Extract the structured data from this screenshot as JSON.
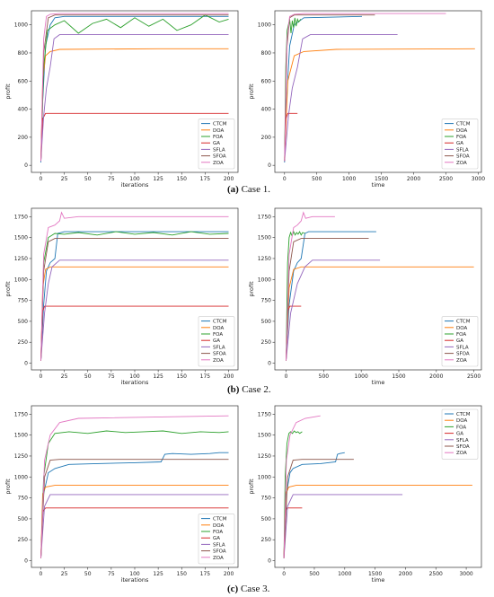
{
  "colors": {
    "CTCM": "#1f77b4",
    "DOA": "#ff7f0e",
    "FOA": "#2ca02c",
    "GA": "#d62728",
    "SFLA": "#9467bd",
    "SFOA": "#8c564b",
    "ZOA": "#e377c2"
  },
  "captions": [
    {
      "label": "(a)",
      "text": " Case 1."
    },
    {
      "label": "(b)",
      "text": " Case 2."
    },
    {
      "label": "(c)",
      "text": " Case 3."
    }
  ],
  "chart_data": [
    {
      "type": "line",
      "panel": "Case 1 (iterations)",
      "xlabel": "iterations",
      "ylabel": "profit",
      "xlim": [
        -10,
        210
      ],
      "ylim": [
        -50,
        1100
      ],
      "xticks": [
        0,
        25,
        50,
        75,
        100,
        125,
        150,
        175,
        200
      ],
      "yticks": [
        0,
        200,
        400,
        600,
        800,
        1000
      ],
      "legend": "bottom-right",
      "series": [
        {
          "name": "CTCM",
          "x": [
            0,
            2,
            5,
            10,
            15,
            25,
            200
          ],
          "y": [
            20,
            450,
            850,
            1000,
            1050,
            1060,
            1060
          ]
        },
        {
          "name": "DOA",
          "x": [
            0,
            2,
            5,
            10,
            20,
            125,
            200
          ],
          "y": [
            50,
            600,
            780,
            810,
            825,
            830,
            830
          ]
        },
        {
          "name": "FOA",
          "x": [
            0,
            3,
            7,
            15,
            25,
            40,
            55,
            70,
            85,
            100,
            115,
            130,
            145,
            160,
            175,
            190,
            200
          ],
          "y": [
            30,
            700,
            960,
            1000,
            1030,
            940,
            1010,
            1040,
            980,
            1050,
            990,
            1040,
            960,
            1000,
            1070,
            1020,
            1040
          ]
        },
        {
          "name": "GA",
          "x": [
            0,
            2,
            5,
            200
          ],
          "y": [
            30,
            330,
            370,
            370
          ]
        },
        {
          "name": "SFLA",
          "x": [
            0,
            3,
            6,
            10,
            14,
            20,
            200
          ],
          "y": [
            30,
            350,
            550,
            700,
            900,
            930,
            930
          ]
        },
        {
          "name": "SFOA",
          "x": [
            0,
            3,
            8,
            15,
            200
          ],
          "y": [
            30,
            800,
            1050,
            1070,
            1070
          ]
        },
        {
          "name": "ZOA",
          "x": [
            0,
            3,
            6,
            10,
            20,
            200
          ],
          "y": [
            30,
            900,
            1060,
            1075,
            1080,
            1080
          ]
        }
      ]
    },
    {
      "type": "line",
      "panel": "Case 1 (time)",
      "xlabel": "time",
      "ylabel": "profit",
      "xlim": [
        -150,
        3050
      ],
      "ylim": [
        -50,
        1100
      ],
      "xticks": [
        0,
        500,
        1000,
        1500,
        2000,
        2500,
        3000
      ],
      "yticks": [
        0,
        200,
        400,
        600,
        800,
        1000
      ],
      "legend": "bottom-right",
      "series": [
        {
          "name": "CTCM",
          "x": [
            0,
            30,
            80,
            150,
            300,
            1200
          ],
          "y": [
            20,
            450,
            850,
            1000,
            1050,
            1060
          ]
        },
        {
          "name": "DOA",
          "x": [
            0,
            50,
            150,
            300,
            800,
            2950
          ],
          "y": [
            50,
            600,
            780,
            810,
            825,
            830
          ]
        },
        {
          "name": "FOA",
          "x": [
            0,
            20,
            40,
            60,
            80,
            100,
            120,
            140,
            160,
            180,
            200,
            220,
            250
          ],
          "y": [
            30,
            700,
            960,
            1000,
            1040,
            940,
            1030,
            980,
            1050,
            990,
            1040,
            1020,
            1040
          ]
        },
        {
          "name": "GA",
          "x": [
            0,
            20,
            50,
            200
          ],
          "y": [
            30,
            330,
            370,
            370
          ]
        },
        {
          "name": "SFLA",
          "x": [
            0,
            60,
            120,
            200,
            280,
            400,
            1750
          ],
          "y": [
            30,
            350,
            550,
            700,
            900,
            930,
            930
          ]
        },
        {
          "name": "SFOA",
          "x": [
            0,
            30,
            80,
            150,
            1400
          ],
          "y": [
            30,
            800,
            1050,
            1070,
            1070
          ]
        },
        {
          "name": "ZOA",
          "x": [
            0,
            40,
            80,
            150,
            300,
            2500
          ],
          "y": [
            30,
            900,
            1060,
            1075,
            1080,
            1080
          ]
        }
      ]
    },
    {
      "type": "line",
      "panel": "Case 2 (iterations)",
      "xlabel": "iterations",
      "ylabel": "profit",
      "xlim": [
        -10,
        210
      ],
      "ylim": [
        -80,
        1850
      ],
      "xticks": [
        0,
        25,
        50,
        75,
        100,
        125,
        150,
        175,
        200
      ],
      "yticks": [
        0,
        250,
        500,
        750,
        1000,
        1250,
        1500,
        1750
      ],
      "legend": "bottom-right",
      "series": [
        {
          "name": "CTCM",
          "x": [
            0,
            3,
            6,
            10,
            15,
            18,
            25,
            200
          ],
          "y": [
            30,
            700,
            1100,
            1200,
            1250,
            1550,
            1570,
            1570
          ]
        },
        {
          "name": "DOA",
          "x": [
            0,
            2,
            5,
            10,
            200
          ],
          "y": [
            30,
            900,
            1120,
            1150,
            1150
          ]
        },
        {
          "name": "FOA",
          "x": [
            0,
            3,
            8,
            15,
            25,
            40,
            60,
            80,
            100,
            120,
            140,
            160,
            180,
            200
          ],
          "y": [
            30,
            1200,
            1500,
            1550,
            1540,
            1560,
            1530,
            1570,
            1540,
            1560,
            1530,
            1570,
            1540,
            1550
          ]
        },
        {
          "name": "GA",
          "x": [
            0,
            2,
            4,
            200
          ],
          "y": [
            30,
            620,
            680,
            680
          ]
        },
        {
          "name": "SFLA",
          "x": [
            0,
            4,
            8,
            12,
            20,
            200
          ],
          "y": [
            30,
            600,
            950,
            1150,
            1230,
            1230
          ]
        },
        {
          "name": "SFOA",
          "x": [
            0,
            3,
            8,
            15,
            200
          ],
          "y": [
            30,
            1100,
            1450,
            1490,
            1490
          ]
        },
        {
          "name": "ZOA",
          "x": [
            0,
            3,
            8,
            15,
            20,
            22,
            25,
            40,
            200
          ],
          "y": [
            30,
            1300,
            1620,
            1650,
            1700,
            1800,
            1730,
            1750,
            1750
          ]
        }
      ]
    },
    {
      "type": "line",
      "panel": "Case 2 (time)",
      "xlabel": "time",
      "ylabel": "profit",
      "xlim": [
        -150,
        2600
      ],
      "ylim": [
        -80,
        1850
      ],
      "xticks": [
        0,
        500,
        1000,
        1500,
        2000,
        2500
      ],
      "yticks": [
        0,
        250,
        500,
        750,
        1000,
        1250,
        1500,
        1750
      ],
      "legend": "bottom-right",
      "series": [
        {
          "name": "CTCM",
          "x": [
            0,
            40,
            100,
            150,
            200,
            250,
            300,
            1200
          ],
          "y": [
            30,
            700,
            1100,
            1200,
            1250,
            1550,
            1570,
            1570
          ]
        },
        {
          "name": "DOA",
          "x": [
            0,
            40,
            100,
            200,
            2500
          ],
          "y": [
            30,
            900,
            1120,
            1150,
            1150
          ]
        },
        {
          "name": "FOA",
          "x": [
            0,
            20,
            40,
            60,
            80,
            100,
            120,
            140,
            160,
            180,
            200,
            220,
            250
          ],
          "y": [
            30,
            1200,
            1500,
            1560,
            1520,
            1570,
            1530,
            1560,
            1540,
            1570,
            1530,
            1560,
            1550
          ]
        },
        {
          "name": "GA",
          "x": [
            0,
            20,
            50,
            200
          ],
          "y": [
            30,
            620,
            680,
            680
          ]
        },
        {
          "name": "SFLA",
          "x": [
            0,
            60,
            150,
            250,
            350,
            1250
          ],
          "y": [
            30,
            600,
            950,
            1150,
            1230,
            1230
          ]
        },
        {
          "name": "SFOA",
          "x": [
            0,
            40,
            100,
            200,
            1100
          ],
          "y": [
            30,
            1100,
            1450,
            1490,
            1490
          ]
        },
        {
          "name": "ZOA",
          "x": [
            0,
            40,
            100,
            150,
            200,
            230,
            260,
            350,
            650
          ],
          "y": [
            30,
            1300,
            1620,
            1650,
            1700,
            1800,
            1730,
            1750,
            1750
          ]
        }
      ]
    },
    {
      "type": "line",
      "panel": "Case 3 (iterations)",
      "xlabel": "iterations",
      "ylabel": "profit",
      "xlim": [
        -10,
        210
      ],
      "ylim": [
        -80,
        1850
      ],
      "xticks": [
        0,
        25,
        50,
        75,
        100,
        125,
        150,
        175,
        200
      ],
      "yticks": [
        0,
        250,
        500,
        750,
        1000,
        1250,
        1500,
        1750
      ],
      "legend": "bottom-right",
      "series": [
        {
          "name": "CTCM",
          "x": [
            0,
            3,
            8,
            15,
            30,
            60,
            100,
            128,
            132,
            140,
            160,
            180,
            190,
            200
          ],
          "y": [
            30,
            800,
            1050,
            1100,
            1150,
            1160,
            1170,
            1180,
            1270,
            1280,
            1270,
            1280,
            1290,
            1290
          ]
        },
        {
          "name": "DOA",
          "x": [
            0,
            2,
            5,
            15,
            200
          ],
          "y": [
            30,
            800,
            880,
            900,
            900
          ]
        },
        {
          "name": "FOA",
          "x": [
            0,
            3,
            8,
            15,
            30,
            50,
            70,
            90,
            110,
            130,
            150,
            170,
            190,
            200
          ],
          "y": [
            30,
            1000,
            1400,
            1520,
            1540,
            1520,
            1550,
            1530,
            1540,
            1550,
            1520,
            1540,
            1530,
            1540
          ]
        },
        {
          "name": "GA",
          "x": [
            0,
            2,
            5,
            200
          ],
          "y": [
            30,
            580,
            630,
            630
          ]
        },
        {
          "name": "SFLA",
          "x": [
            0,
            4,
            10,
            200
          ],
          "y": [
            30,
            650,
            790,
            790
          ]
        },
        {
          "name": "SFOA",
          "x": [
            0,
            4,
            10,
            20,
            200
          ],
          "y": [
            30,
            1000,
            1200,
            1210,
            1210
          ]
        },
        {
          "name": "ZOA",
          "x": [
            0,
            4,
            10,
            20,
            40,
            200
          ],
          "y": [
            30,
            1200,
            1500,
            1650,
            1700,
            1730
          ]
        }
      ]
    },
    {
      "type": "line",
      "panel": "Case 3 (time)",
      "xlabel": "time",
      "ylabel": "profit",
      "xlim": [
        -150,
        3250
      ],
      "ylim": [
        -80,
        1850
      ],
      "xticks": [
        0,
        500,
        1000,
        1500,
        2000,
        2500,
        3000
      ],
      "yticks": [
        0,
        250,
        500,
        750,
        1000,
        1250,
        1500,
        1750
      ],
      "legend": "top-right",
      "series": [
        {
          "name": "CTCM",
          "x": [
            0,
            40,
            100,
            150,
            300,
            600,
            850,
            880,
            920,
            1000
          ],
          "y": [
            30,
            800,
            1050,
            1100,
            1150,
            1160,
            1180,
            1270,
            1280,
            1290
          ]
        },
        {
          "name": "DOA",
          "x": [
            0,
            30,
            80,
            200,
            3100
          ],
          "y": [
            30,
            800,
            880,
            900,
            900
          ]
        },
        {
          "name": "FOA",
          "x": [
            0,
            20,
            50,
            80,
            110,
            140,
            170,
            200,
            230,
            260,
            300
          ],
          "y": [
            30,
            1000,
            1400,
            1520,
            1540,
            1520,
            1550,
            1530,
            1540,
            1520,
            1540
          ]
        },
        {
          "name": "GA",
          "x": [
            0,
            20,
            50,
            300
          ],
          "y": [
            30,
            580,
            630,
            630
          ]
        },
        {
          "name": "SFLA",
          "x": [
            0,
            60,
            150,
            1950
          ],
          "y": [
            30,
            650,
            790,
            790
          ]
        },
        {
          "name": "SFOA",
          "x": [
            0,
            60,
            150,
            300,
            1150
          ],
          "y": [
            30,
            1000,
            1200,
            1210,
            1210
          ]
        },
        {
          "name": "ZOA",
          "x": [
            0,
            40,
            100,
            200,
            350,
            600
          ],
          "y": [
            30,
            1200,
            1500,
            1650,
            1700,
            1730
          ]
        }
      ]
    }
  ]
}
